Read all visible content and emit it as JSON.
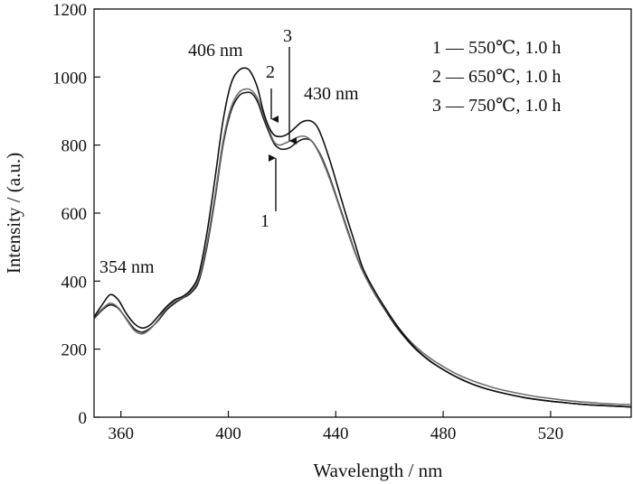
{
  "chart_data": {
    "type": "line",
    "title": "",
    "xlabel": "Wavelength / nm",
    "ylabel": "Intensity / (a.u.)",
    "xlim": [
      350,
      550
    ],
    "ylim": [
      0,
      1200
    ],
    "xticks": [
      360,
      400,
      440,
      480,
      520
    ],
    "yticks": [
      0,
      200,
      400,
      600,
      800,
      1000,
      1200
    ],
    "grid": false,
    "legend_position": "top-right",
    "legend": [
      {
        "id": "1",
        "label": "1 — 550℃, 1.0 h"
      },
      {
        "id": "2",
        "label": "2 — 650℃, 1.0 h"
      },
      {
        "id": "3",
        "label": "3 — 750℃, 1.0 h"
      }
    ],
    "series": [
      {
        "name": "1",
        "color": "#1a1a1a",
        "x": [
          350,
          353,
          356,
          359,
          362,
          365,
          368,
          371,
          374,
          377,
          380,
          383,
          386,
          389,
          392,
          395,
          398,
          401,
          404,
          407,
          409,
          411,
          413,
          415,
          417,
          419,
          421,
          423,
          425,
          427,
          429,
          431,
          433,
          435,
          438,
          441,
          444,
          447,
          450,
          454,
          458,
          462,
          466,
          470,
          475,
          480,
          485,
          490,
          495,
          500,
          505,
          510,
          515,
          520,
          525,
          530,
          535,
          540,
          545,
          550
        ],
        "values": [
          290,
          315,
          330,
          320,
          290,
          260,
          250,
          262,
          285,
          315,
          335,
          350,
          365,
          400,
          500,
          640,
          800,
          900,
          945,
          955,
          950,
          925,
          880,
          840,
          805,
          790,
          788,
          793,
          805,
          815,
          818,
          812,
          790,
          760,
          700,
          630,
          560,
          490,
          430,
          370,
          320,
          272,
          232,
          198,
          165,
          140,
          118,
          100,
          86,
          75,
          66,
          58,
          52,
          47,
          43,
          39,
          36,
          34,
          32,
          30
        ]
      },
      {
        "name": "2",
        "color": "#6f6f6f",
        "x": [
          350,
          353,
          356,
          359,
          362,
          365,
          368,
          371,
          374,
          377,
          380,
          383,
          386,
          389,
          392,
          395,
          398,
          401,
          404,
          407,
          409,
          411,
          413,
          415,
          417,
          419,
          421,
          423,
          425,
          427,
          429,
          431,
          433,
          435,
          438,
          441,
          444,
          447,
          450,
          454,
          458,
          462,
          466,
          470,
          475,
          480,
          485,
          490,
          495,
          500,
          505,
          510,
          515,
          520,
          525,
          530,
          535,
          540,
          545,
          550
        ],
        "values": [
          295,
          318,
          335,
          322,
          288,
          255,
          245,
          260,
          288,
          322,
          340,
          352,
          370,
          408,
          510,
          650,
          810,
          910,
          955,
          965,
          958,
          935,
          890,
          848,
          810,
          800,
          805,
          812,
          820,
          826,
          824,
          812,
          788,
          755,
          695,
          626,
          555,
          487,
          430,
          372,
          324,
          277,
          238,
          206,
          174,
          149,
          127,
          110,
          96,
          84,
          75,
          67,
          60,
          55,
          50,
          46,
          43,
          40,
          38,
          37
        ]
      },
      {
        "name": "3",
        "color": "#111111",
        "x": [
          350,
          353,
          356,
          359,
          362,
          365,
          368,
          371,
          374,
          377,
          380,
          383,
          386,
          389,
          392,
          395,
          398,
          401,
          404,
          407,
          409,
          411,
          413,
          415,
          417,
          419,
          421,
          423,
          425,
          427,
          429,
          431,
          433,
          435,
          438,
          441,
          444,
          447,
          450,
          454,
          458,
          462,
          466,
          470,
          475,
          480,
          485,
          490,
          495,
          500,
          505,
          510,
          515,
          520,
          525,
          530,
          535,
          540,
          545,
          550
        ],
        "values": [
          295,
          330,
          360,
          345,
          305,
          275,
          262,
          272,
          298,
          325,
          345,
          355,
          375,
          420,
          540,
          700,
          870,
          980,
          1020,
          1025,
          1005,
          965,
          900,
          855,
          830,
          825,
          828,
          838,
          852,
          866,
          872,
          870,
          855,
          820,
          750,
          670,
          590,
          515,
          440,
          378,
          326,
          278,
          236,
          200,
          166,
          140,
          118,
          100,
          86,
          75,
          66,
          58,
          52,
          47,
          43,
          39,
          36,
          34,
          32,
          30
        ]
      }
    ],
    "annotations": [
      {
        "id": "peak-354",
        "text": "354 nm"
      },
      {
        "id": "peak-406",
        "text": "406 nm"
      },
      {
        "id": "peak-430",
        "text": "430 nm"
      },
      {
        "id": "marker-1",
        "text": "1"
      },
      {
        "id": "marker-2",
        "text": "2"
      },
      {
        "id": "marker-3",
        "text": "3"
      }
    ]
  }
}
